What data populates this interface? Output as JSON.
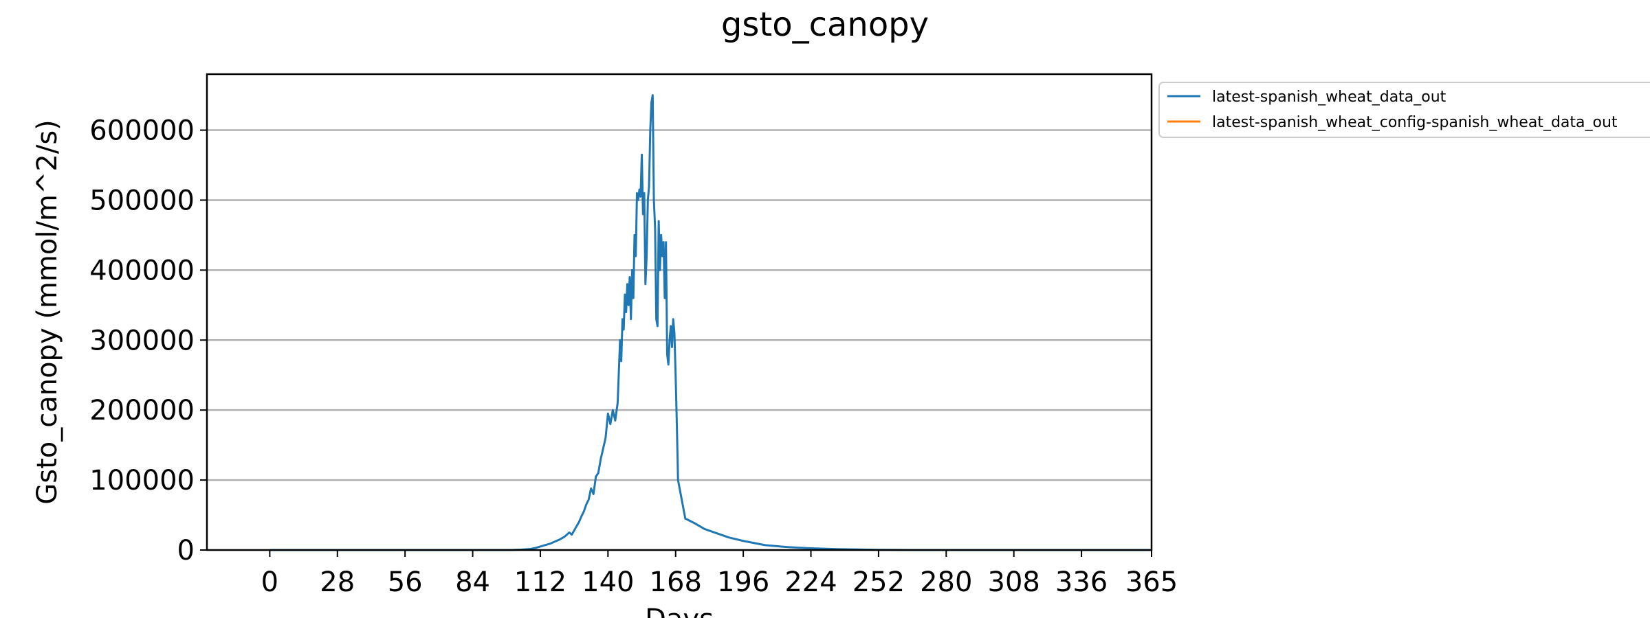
{
  "chart_data": {
    "type": "line",
    "title": "gsto_canopy",
    "xlabel": "Days",
    "ylabel": "Gsto_canopy (mmol/m^2/s)",
    "xlim": [
      -26,
      365
    ],
    "ylim": [
      0,
      680000
    ],
    "x_ticks": [
      0,
      28,
      56,
      84,
      112,
      140,
      168,
      196,
      224,
      252,
      280,
      308,
      336,
      365
    ],
    "y_ticks": [
      0,
      100000,
      200000,
      300000,
      400000,
      500000,
      600000
    ],
    "y_tick_labels": [
      "0",
      "100000",
      "200000",
      "300000",
      "400000",
      "500000",
      "600000"
    ],
    "grid": "horizontal",
    "legend_placement": "outside-top-right",
    "series": [
      {
        "name": "latest-spanish_wheat_data_out",
        "color": "#1f77b4",
        "x": [
          0,
          100,
          104,
          108,
          110,
          112,
          114,
          116,
          118,
          120,
          122,
          124,
          125,
          126,
          128,
          129,
          130,
          131,
          132,
          133,
          134,
          135,
          136,
          137,
          138,
          139,
          140,
          141,
          142,
          143,
          144,
          145,
          145.5,
          146,
          146.5,
          147,
          147.5,
          148,
          148.5,
          149,
          149.5,
          150,
          150.5,
          151,
          151.5,
          152,
          152.5,
          153,
          153.5,
          154,
          154.5,
          155,
          155.5,
          156,
          156.5,
          157,
          157.5,
          158,
          158.5,
          159,
          159.5,
          160,
          160.5,
          161,
          161.5,
          162,
          162.5,
          163,
          163.5,
          164,
          164.5,
          165,
          165.5,
          166,
          166.5,
          167,
          167.5,
          168,
          168.5,
          169,
          172,
          176,
          180,
          185,
          190,
          196,
          205,
          215,
          224,
          235,
          252,
          265,
          280,
          308,
          336,
          365
        ],
        "y": [
          0,
          0,
          500,
          1500,
          3000,
          5000,
          7000,
          9000,
          12000,
          15000,
          19000,
          25000,
          22000,
          28000,
          40000,
          48000,
          55000,
          65000,
          72000,
          88000,
          80000,
          105000,
          110000,
          130000,
          145000,
          160000,
          195000,
          180000,
          200000,
          185000,
          210000,
          300000,
          270000,
          330000,
          315000,
          365000,
          340000,
          380000,
          350000,
          390000,
          330000,
          400000,
          360000,
          450000,
          420000,
          510000,
          500000,
          515000,
          505000,
          565000,
          480000,
          510000,
          380000,
          420000,
          500000,
          520000,
          600000,
          640000,
          650000,
          500000,
          460000,
          330000,
          320000,
          470000,
          400000,
          450000,
          420000,
          440000,
          360000,
          440000,
          280000,
          265000,
          300000,
          320000,
          290000,
          330000,
          310000,
          250000,
          180000,
          100000,
          45000,
          38000,
          30000,
          24000,
          18000,
          13000,
          7000,
          4000,
          2500,
          1200,
          300,
          0,
          0,
          0,
          0,
          0
        ]
      },
      {
        "name": "latest-spanish_wheat_config-spanish_wheat_data_out",
        "color": "#ff7f0e",
        "x": [],
        "y": []
      }
    ]
  }
}
